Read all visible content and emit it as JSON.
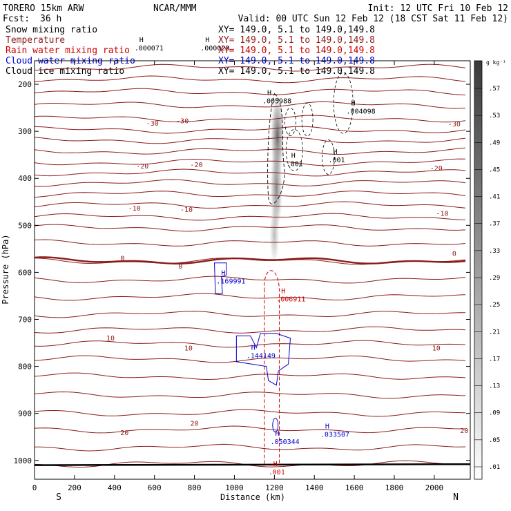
{
  "header": {
    "model": "TORERO  15km ARW",
    "org": "NCAR/MMM",
    "init": "Init: 12 UTC Fri 10 Feb 12",
    "fcst_label": "Fcst:",
    "fcst_value": "36 h",
    "valid": "Valid: 00 UTC Sun 12 Feb 12 (18 CST Sat 11 Feb 12)"
  },
  "fields": [
    {
      "name": "Snow mixing ratio",
      "xy": "XY= 149.0,  5.1 to 149.0,149.8",
      "color": "#000000"
    },
    {
      "name": "Temperature",
      "xy": "XY= 149.0,  5.1 to 149.0,149.8",
      "color": "#8b1a1a"
    },
    {
      "name": "Rain water mixing ratio",
      "xy": "XY= 149.0,  5.1 to 149.0,149.8",
      "color": "#cc0000"
    },
    {
      "name": "Cloud water mixing ratio",
      "xy": "XY= 149.0,  5.1 to 149.0,149.8",
      "color": "#0000cc"
    },
    {
      "name": "Cloud ice mixing ratio",
      "xy": "XY= 149.0,  5.1 to 149.0,149.8",
      "color": "#000000"
    }
  ],
  "colors": {
    "temperature": "#8b1a1a",
    "rain": "#cc0000",
    "cloud_water": "#0000cc",
    "ice": "#000000",
    "terrain": "#000000"
  },
  "chart_data": {
    "type": "contour",
    "xlabel": "Distance (km)",
    "ylabel": "Pressure (hPa)",
    "xlim": [
      0,
      2180
    ],
    "ylim": [
      150,
      1040
    ],
    "x_ticks": [
      0,
      200,
      400,
      600,
      800,
      1000,
      1200,
      1400,
      1600,
      1800,
      2000
    ],
    "y_ticks": [
      200,
      300,
      400,
      500,
      600,
      700,
      800,
      900,
      1000
    ],
    "left_end_label": "S",
    "right_end_label": "N",
    "colorbar": {
      "unit": "g kg⁻¹",
      "labels": [
        ".01",
        ".05",
        ".09",
        ".13",
        ".17",
        ".21",
        ".25",
        ".29",
        ".33",
        ".37",
        ".41",
        ".45",
        ".49",
        ".53",
        ".57"
      ]
    },
    "temperature_labels": [
      {
        "text": "-30",
        "x": 590,
        "p": 282
      },
      {
        "text": "-30",
        "x": 740,
        "p": 277
      },
      {
        "text": "-30",
        "x": 2100,
        "p": 284
      },
      {
        "text": "-20",
        "x": 540,
        "p": 373
      },
      {
        "text": "-20",
        "x": 810,
        "p": 370
      },
      {
        "text": "-20",
        "x": 2010,
        "p": 378
      },
      {
        "text": "-10",
        "x": 500,
        "p": 463
      },
      {
        "text": "-10",
        "x": 760,
        "p": 466
      },
      {
        "text": "-10",
        "x": 2040,
        "p": 474
      },
      {
        "text": "0",
        "x": 440,
        "p": 569
      },
      {
        "text": "0",
        "x": 730,
        "p": 586
      },
      {
        "text": "0",
        "x": 2100,
        "p": 559
      },
      {
        "text": "10",
        "x": 380,
        "p": 739
      },
      {
        "text": "10",
        "x": 770,
        "p": 760
      },
      {
        "text": "10",
        "x": 2010,
        "p": 760
      },
      {
        "text": "20",
        "x": 450,
        "p": 940
      },
      {
        "text": "20",
        "x": 800,
        "p": 920
      },
      {
        "text": "20",
        "x": 2150,
        "p": 936
      }
    ],
    "maxima": [
      {
        "text": ".000071",
        "x": 500,
        "p": 128,
        "field": "snow"
      },
      {
        "text": ".000029",
        "x": 830,
        "p": 128,
        "field": "snow"
      },
      {
        "text": ".005988",
        "x": 1140,
        "p": 240,
        "field": "snow"
      },
      {
        "text": ".004098",
        "x": 1560,
        "p": 262,
        "field": "snow"
      },
      {
        "text": ".001",
        "x": 1260,
        "p": 374,
        "field": "ice"
      },
      {
        "text": ".001",
        "x": 1470,
        "p": 366,
        "field": "ice"
      },
      {
        "text": ".169991",
        "x": 910,
        "p": 624,
        "field": "cloud_water"
      },
      {
        "text": ".006911",
        "x": 1210,
        "p": 662,
        "field": "rain"
      },
      {
        "text": ".144149",
        "x": 1060,
        "p": 782,
        "field": "cloud_water"
      },
      {
        "text": ".050344",
        "x": 1180,
        "p": 965,
        "field": "cloud_water"
      },
      {
        "text": ".033507",
        "x": 1430,
        "p": 950,
        "field": "cloud_water"
      },
      {
        "text": ".001",
        "x": 1170,
        "p": 1030,
        "field": "rain"
      }
    ]
  }
}
